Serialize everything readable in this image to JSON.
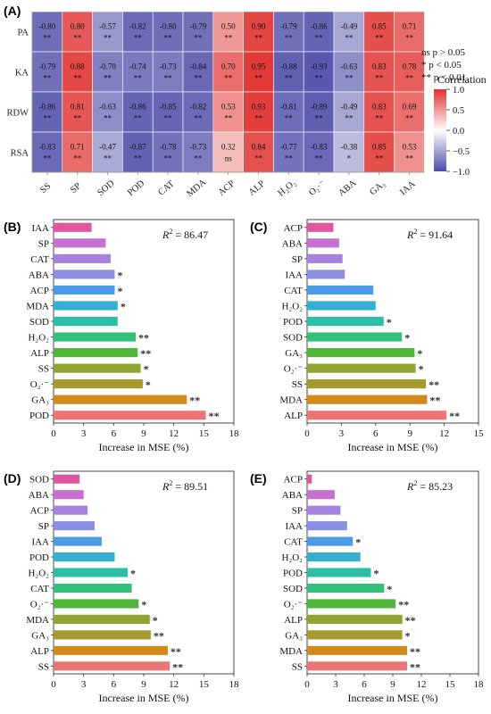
{
  "chart_data": [
    {
      "panel": "(A)",
      "type": "heatmap",
      "rows": [
        "PA",
        "KA",
        "RDW",
        "RSA"
      ],
      "columns": [
        "SS",
        "SP",
        "SOD",
        "POD",
        "CAT",
        "MDA",
        "ACP",
        "ALP",
        "H₂O₂",
        "O₂·⁻",
        "ABA",
        "GA₃",
        "IAA"
      ],
      "values": [
        [
          -0.8,
          0.8,
          -0.57,
          -0.82,
          -0.8,
          -0.79,
          0.5,
          0.9,
          -0.79,
          -0.86,
          -0.49,
          0.85,
          0.71
        ],
        [
          -0.79,
          0.88,
          -0.7,
          -0.74,
          -0.73,
          -0.84,
          0.7,
          0.95,
          -0.88,
          -0.93,
          -0.63,
          0.83,
          0.78
        ],
        [
          -0.86,
          0.81,
          -0.63,
          -0.86,
          -0.85,
          -0.82,
          0.53,
          0.93,
          -0.81,
          -0.89,
          -0.49,
          0.83,
          0.69
        ],
        [
          -0.83,
          0.71,
          -0.47,
          -0.87,
          -0.78,
          -0.73,
          0.32,
          0.84,
          -0.77,
          -0.83,
          -0.38,
          0.85,
          0.53
        ]
      ],
      "significance": [
        [
          "**",
          "**",
          "**",
          "**",
          "**",
          "**",
          "**",
          "**",
          "**",
          "**",
          "**",
          "**",
          "**"
        ],
        [
          "**",
          "**",
          "**",
          "**",
          "**",
          "**",
          "**",
          "**",
          "**",
          "**",
          "**",
          "**",
          "**"
        ],
        [
          "**",
          "**",
          "**",
          "**",
          "**",
          "**",
          "**",
          "**",
          "**",
          "**",
          "**",
          "**",
          "**"
        ],
        [
          "**",
          "**",
          "**",
          "**",
          "**",
          "**",
          "ns",
          "**",
          "**",
          "**",
          "*",
          "**",
          "**"
        ]
      ],
      "significance_legend": [
        "ns p > 0.05",
        "*  p < 0.05",
        "** p < 0.01"
      ],
      "colorbar": {
        "title": "Correlation",
        "ticks": [
          "1.0",
          "0.5",
          "0.0",
          "−0.5",
          "−1.0"
        ],
        "range": [
          -1.0,
          1.0
        ],
        "colors": {
          "negative": "#4b4ba8",
          "neutral": "#ffffff",
          "positive": "#e0302c"
        }
      }
    },
    {
      "panel": "(B)",
      "type": "bar",
      "orientation": "horizontal",
      "categories": [
        "IAA",
        "SP",
        "CAT",
        "ABA",
        "ACP",
        "MDA",
        "SOD",
        "H₂O₂",
        "ALP",
        "SS",
        "O₂·⁻",
        "GA₃",
        "POD"
      ],
      "values": [
        3.8,
        5.2,
        5.7,
        6.1,
        6.1,
        6.4,
        6.4,
        8.2,
        8.4,
        8.7,
        8.9,
        13.3,
        15.2
      ],
      "significance": [
        "",
        "",
        "",
        "*",
        "*",
        "*",
        "",
        "**",
        "**",
        "*",
        "*",
        "**",
        "**"
      ],
      "colors": [
        "#e0569e",
        "#c86fd2",
        "#a682e0",
        "#8a8fe4",
        "#4b9be6",
        "#33b0d2",
        "#2cbfa6",
        "#34c07a",
        "#4fb83a",
        "#8ea532",
        "#a79a2c",
        "#d28a1c",
        "#ec7676"
      ],
      "r2": "86.47",
      "xlabel": "Increase in MSE (%)",
      "xlim": [
        0,
        18
      ],
      "xticks": [
        "0",
        "3",
        "6",
        "9",
        "12",
        "15",
        "18"
      ]
    },
    {
      "panel": "(C)",
      "type": "bar",
      "orientation": "horizontal",
      "categories": [
        "ACP",
        "ABA",
        "SP",
        "IAA",
        "CAT",
        "H₂O₂",
        "POD",
        "SOD",
        "GA₃",
        "O₂·⁻",
        "SS",
        "MDA",
        "ALP"
      ],
      "values": [
        2.3,
        2.8,
        3.1,
        3.3,
        5.8,
        6.0,
        6.7,
        8.3,
        9.4,
        9.5,
        10.4,
        10.5,
        12.2
      ],
      "significance": [
        "",
        "",
        "",
        "",
        "",
        "",
        "*",
        "*",
        "*",
        "*",
        "**",
        "**",
        "**"
      ],
      "colors": [
        "#e0569e",
        "#c86fd2",
        "#a682e0",
        "#8a8fe4",
        "#4b9be6",
        "#33b0d2",
        "#2cbfa6",
        "#34c07a",
        "#4fb83a",
        "#8ea532",
        "#a79a2c",
        "#d28a1c",
        "#ec7676"
      ],
      "r2": "91.64",
      "xlabel": "Increase in MSE (%)",
      "xlim": [
        0,
        15
      ],
      "xticks": [
        "0",
        "3",
        "6",
        "9",
        "12",
        "15"
      ]
    },
    {
      "panel": "(D)",
      "type": "bar",
      "orientation": "horizontal",
      "categories": [
        "SOD",
        "ABA",
        "ACP",
        "SP",
        "IAA",
        "POD",
        "H₂O₂",
        "CAT",
        "O₂·⁻",
        "MDA",
        "GA₃",
        "ALP",
        "SS"
      ],
      "values": [
        2.6,
        3.0,
        3.4,
        4.1,
        4.8,
        6.1,
        7.4,
        7.8,
        8.5,
        9.6,
        9.7,
        11.4,
        11.6
      ],
      "significance": [
        "",
        "",
        "",
        "",
        "",
        "",
        "*",
        "",
        "*",
        "*",
        "**",
        "**",
        "**"
      ],
      "colors": [
        "#e0569e",
        "#c86fd2",
        "#a682e0",
        "#8a8fe4",
        "#4b9be6",
        "#33b0d2",
        "#2cbfa6",
        "#34c07a",
        "#4fb83a",
        "#8ea532",
        "#a79a2c",
        "#d28a1c",
        "#ec7676"
      ],
      "r2": "89.51",
      "xlabel": "Increase in MSE (%)",
      "xlim": [
        0,
        18
      ],
      "xticks": [
        "0",
        "3",
        "6",
        "9",
        "12",
        "15",
        "18"
      ]
    },
    {
      "panel": "(E)",
      "type": "bar",
      "orientation": "horizontal",
      "categories": [
        "ACP",
        "ABA",
        "SP",
        "IAA",
        "CAT",
        "H₂O₂",
        "POD",
        "SOD",
        "O₂·⁻",
        "ALP",
        "GA₃",
        "MDA",
        "SS"
      ],
      "values": [
        0.5,
        2.9,
        3.5,
        4.2,
        4.8,
        5.6,
        6.7,
        8.1,
        9.3,
        10.0,
        10.0,
        10.5,
        10.5
      ],
      "significance": [
        "",
        "",
        "",
        "",
        "*",
        "",
        "*",
        "*",
        "**",
        "**",
        "*",
        "**",
        "**"
      ],
      "colors": [
        "#e0569e",
        "#c86fd2",
        "#a682e0",
        "#8a8fe4",
        "#4b9be6",
        "#33b0d2",
        "#2cbfa6",
        "#34c07a",
        "#4fb83a",
        "#8ea532",
        "#a79a2c",
        "#d28a1c",
        "#ec7676"
      ],
      "r2": "85.23",
      "xlabel": "Increase in MSE (%)",
      "xlim": [
        0,
        18
      ],
      "xticks": [
        "0",
        "3",
        "6",
        "9",
        "12",
        "15",
        "18"
      ]
    }
  ]
}
